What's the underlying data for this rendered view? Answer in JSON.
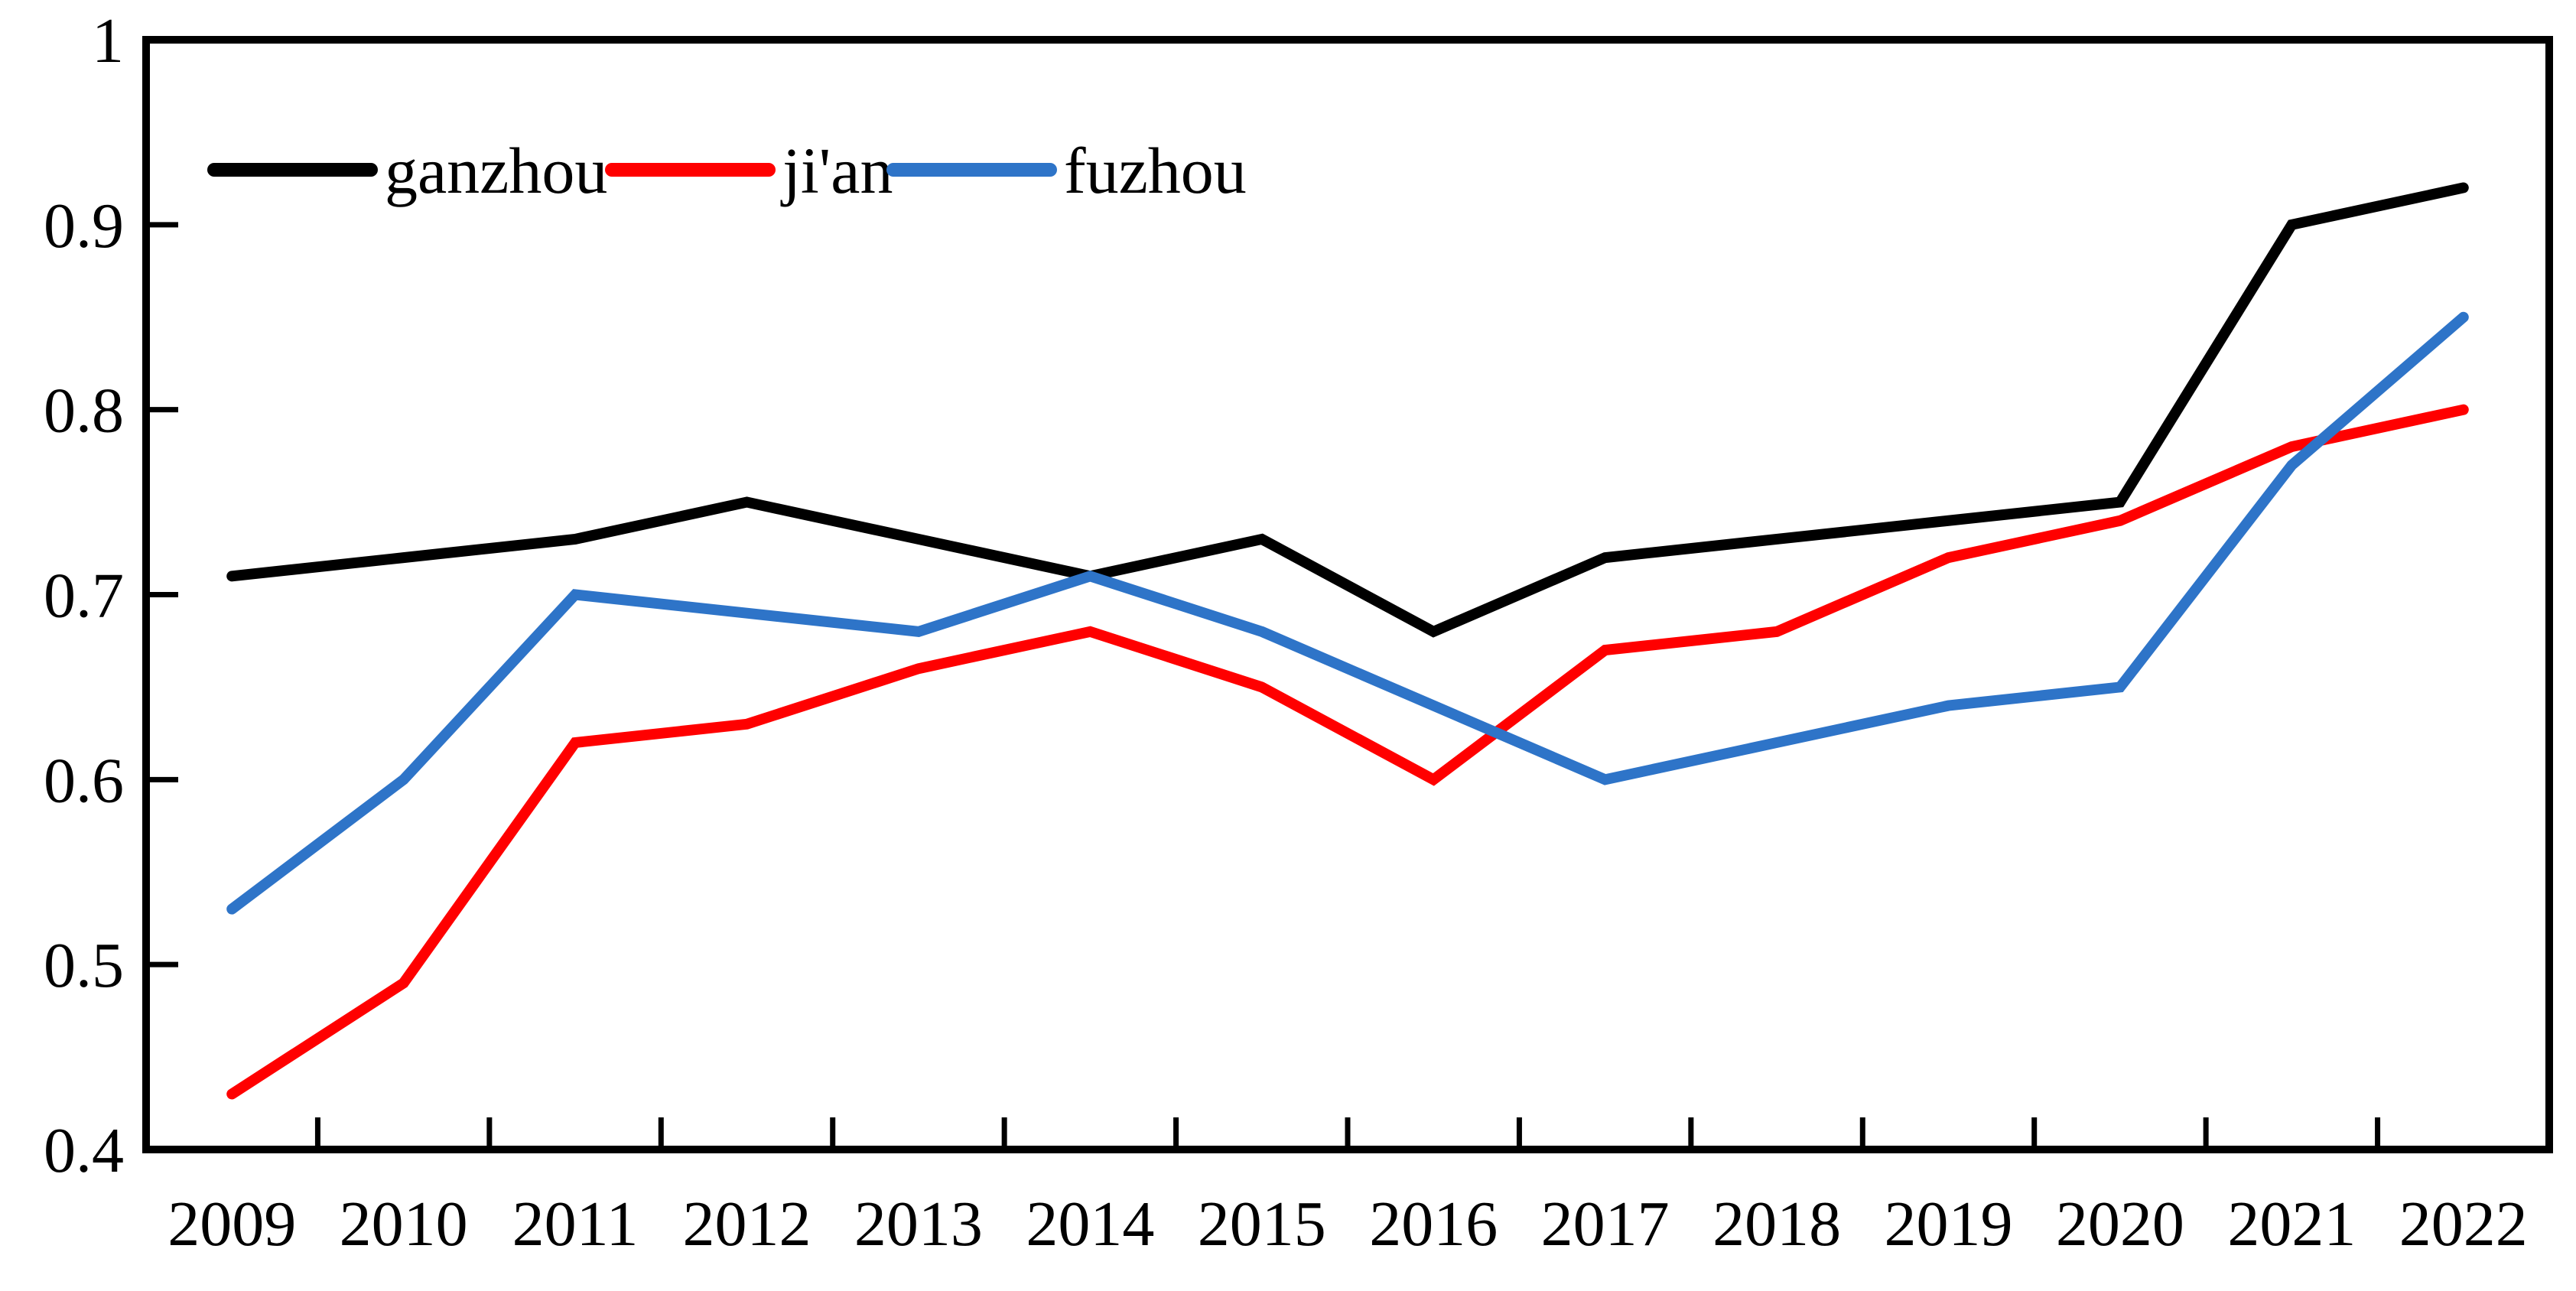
{
  "chart_data": {
    "type": "line",
    "title": "",
    "xlabel": "",
    "ylabel": "",
    "x": [
      2009,
      2010,
      2011,
      2012,
      2013,
      2014,
      2015,
      2016,
      2017,
      2018,
      2019,
      2020,
      2021,
      2022
    ],
    "ylim": [
      0.4,
      1.0
    ],
    "y_tick_labels": [
      "1",
      "0.9",
      "0.8",
      "0.7",
      "0.6",
      "0.5",
      "0.4"
    ],
    "y_tick_values": [
      1.0,
      0.9,
      0.8,
      0.7,
      0.6,
      0.5,
      0.4
    ],
    "grid": false,
    "legend_position": "inside-top-left",
    "series": [
      {
        "name": "ganzhou",
        "color": "#000000",
        "values": [
          0.71,
          0.72,
          0.73,
          0.75,
          0.73,
          0.71,
          0.73,
          0.68,
          0.72,
          0.73,
          0.74,
          0.75,
          0.9,
          0.92
        ]
      },
      {
        "name": "ji'an",
        "color": "#FF0000",
        "values": [
          0.43,
          0.49,
          0.62,
          0.63,
          0.66,
          0.68,
          0.65,
          0.6,
          0.67,
          0.68,
          0.72,
          0.74,
          0.78,
          0.8
        ]
      },
      {
        "name": "fuzhou",
        "color": "#2E74C8",
        "values": [
          0.53,
          0.6,
          0.7,
          0.69,
          0.68,
          0.71,
          0.68,
          0.64,
          0.6,
          0.62,
          0.64,
          0.65,
          0.77,
          0.85
        ]
      }
    ]
  },
  "colors": {
    "frame": "#000000",
    "background": "#FFFFFF",
    "tick": "#000000",
    "label": "#000000"
  }
}
